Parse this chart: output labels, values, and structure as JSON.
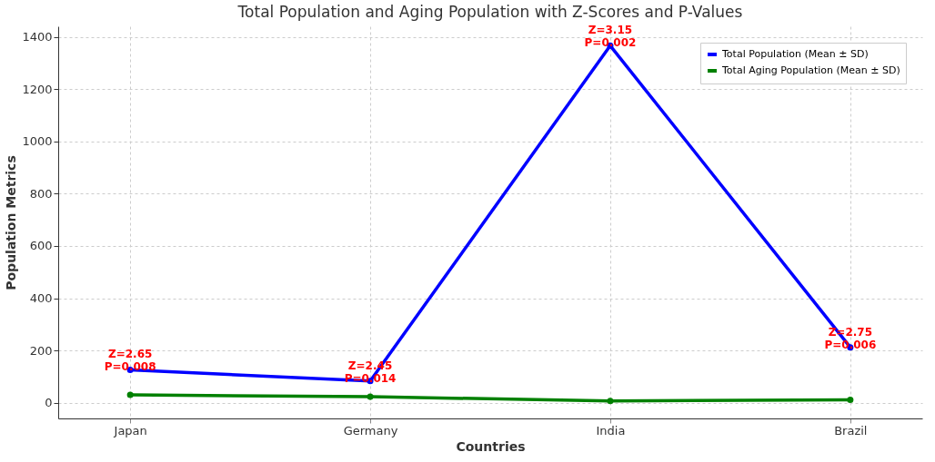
{
  "chart_data": {
    "type": "line",
    "title": "Total Population and Aging Population with Z-Scores and P-Values",
    "xlabel": "Countries",
    "ylabel": "Population Metrics",
    "categories": [
      "Japan",
      "Germany",
      "India",
      "Brazil"
    ],
    "series": [
      {
        "name": "Total Population (Mean ± SD)",
        "color": "#0000ff",
        "values": [
          126,
          83,
          1366,
          212
        ]
      },
      {
        "name": "Total Aging Population (Mean ± SD)",
        "color": "#008000",
        "values": [
          30,
          23,
          7,
          11
        ]
      }
    ],
    "ylim": [
      -60,
      1440
    ],
    "yticks": [
      0,
      200,
      400,
      600,
      800,
      1000,
      1200,
      1400
    ],
    "annotations": [
      {
        "text": "Z=2.65\nP=0.008",
        "x": "Japan",
        "y": 126
      },
      {
        "text": "Z=2.45\nP=0.014",
        "x": "Germany",
        "y": 83
      },
      {
        "text": "Z=3.15\nP=0.002",
        "x": "India",
        "y": 1366
      },
      {
        "text": "Z=2.75\nP=0.006",
        "x": "Brazil",
        "y": 212
      }
    ],
    "grid": true,
    "legend": "top right",
    "marker": "circle",
    "line_style": "solid"
  }
}
